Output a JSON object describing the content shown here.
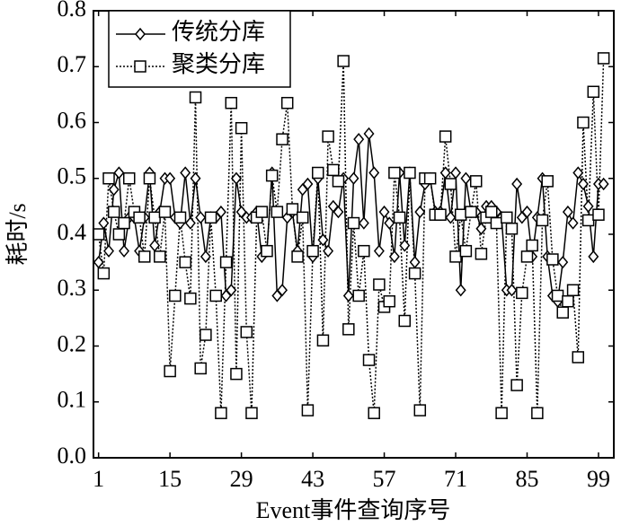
{
  "chart_data": {
    "type": "line",
    "x_label": "Event事件查询序号",
    "y_label": "耗时/s",
    "x": [
      1,
      2,
      3,
      4,
      5,
      6,
      7,
      8,
      9,
      10,
      11,
      12,
      13,
      14,
      15,
      16,
      17,
      18,
      19,
      20,
      21,
      22,
      23,
      24,
      25,
      26,
      27,
      28,
      29,
      30,
      31,
      32,
      33,
      34,
      35,
      36,
      37,
      38,
      39,
      40,
      41,
      42,
      43,
      44,
      45,
      46,
      47,
      48,
      49,
      50,
      51,
      52,
      53,
      54,
      55,
      56,
      57,
      58,
      59,
      60,
      61,
      62,
      63,
      64,
      65,
      66,
      67,
      68,
      69,
      70,
      71,
      72,
      73,
      74,
      75,
      76,
      77,
      78,
      79,
      80,
      81,
      82,
      83,
      84,
      85,
      86,
      87,
      88,
      89,
      90,
      91,
      92,
      93,
      94,
      95,
      96,
      97,
      98,
      99,
      100
    ],
    "series": [
      {
        "name": "传统分库",
        "color": "#000000",
        "marker": "diamond",
        "linestyle": "solid",
        "values": [
          0.35,
          0.42,
          0.37,
          0.48,
          0.51,
          0.37,
          0.43,
          0.43,
          0.37,
          0.43,
          0.51,
          0.38,
          0.44,
          0.5,
          0.5,
          0.43,
          0.42,
          0.51,
          0.42,
          0.5,
          0.43,
          0.36,
          0.43,
          0.43,
          0.44,
          0.29,
          0.3,
          0.5,
          0.44,
          0.43,
          0.43,
          0.44,
          0.36,
          0.37,
          0.51,
          0.29,
          0.3,
          0.43,
          0.44,
          0.37,
          0.48,
          0.49,
          0.36,
          0.5,
          0.39,
          0.37,
          0.45,
          0.44,
          0.5,
          0.29,
          0.5,
          0.57,
          0.42,
          0.58,
          0.51,
          0.37,
          0.44,
          0.42,
          0.36,
          0.51,
          0.38,
          0.51,
          0.35,
          0.44,
          0.49,
          0.5,
          0.44,
          0.44,
          0.51,
          0.43,
          0.51,
          0.3,
          0.5,
          0.44,
          0.44,
          0.41,
          0.45,
          0.45,
          0.44,
          0.43,
          0.3,
          0.3,
          0.49,
          0.43,
          0.44,
          0.36,
          0.43,
          0.5,
          0.36,
          0.29,
          0.28,
          0.35,
          0.44,
          0.42,
          0.51,
          0.49,
          0.45,
          0.36,
          0.49,
          0.49
        ]
      },
      {
        "name": "聚类分库",
        "color": "#000000",
        "marker": "square",
        "linestyle": "dotted",
        "values": [
          0.4,
          0.33,
          0.5,
          0.44,
          0.4,
          0.42,
          0.5,
          0.44,
          0.43,
          0.36,
          0.5,
          0.43,
          0.36,
          0.44,
          0.155,
          0.29,
          0.43,
          0.35,
          0.285,
          0.645,
          0.16,
          0.22,
          0.43,
          0.29,
          0.08,
          0.35,
          0.635,
          0.15,
          0.59,
          0.225,
          0.08,
          0.43,
          0.44,
          0.37,
          0.505,
          0.44,
          0.57,
          0.635,
          0.445,
          0.36,
          0.43,
          0.085,
          0.37,
          0.51,
          0.21,
          0.575,
          0.515,
          0.495,
          0.71,
          0.23,
          0.42,
          0.29,
          0.37,
          0.175,
          0.08,
          0.31,
          0.27,
          0.28,
          0.51,
          0.43,
          0.245,
          0.51,
          0.33,
          0.085,
          0.5,
          0.5,
          0.435,
          0.435,
          0.575,
          0.49,
          0.36,
          0.435,
          0.37,
          0.44,
          0.495,
          0.365,
          0.43,
          0.44,
          0.42,
          0.08,
          0.43,
          0.41,
          0.13,
          0.295,
          0.36,
          0.38,
          0.08,
          0.425,
          0.495,
          0.355,
          0.29,
          0.26,
          0.28,
          0.3,
          0.18,
          0.6,
          0.425,
          0.655,
          0.435,
          0.715
        ]
      }
    ],
    "xlim": [
      0,
      102
    ],
    "xticks": [
      1,
      15,
      29,
      43,
      57,
      71,
      85,
      99
    ],
    "ylim": [
      0,
      0.8
    ],
    "yticks": [
      {
        "value": 0,
        "label": "0.0"
      },
      0.1,
      0.2,
      0.3,
      0.4,
      0.5,
      0.6,
      0.7,
      0.8
    ],
    "grid": false,
    "legend": "upper left"
  }
}
